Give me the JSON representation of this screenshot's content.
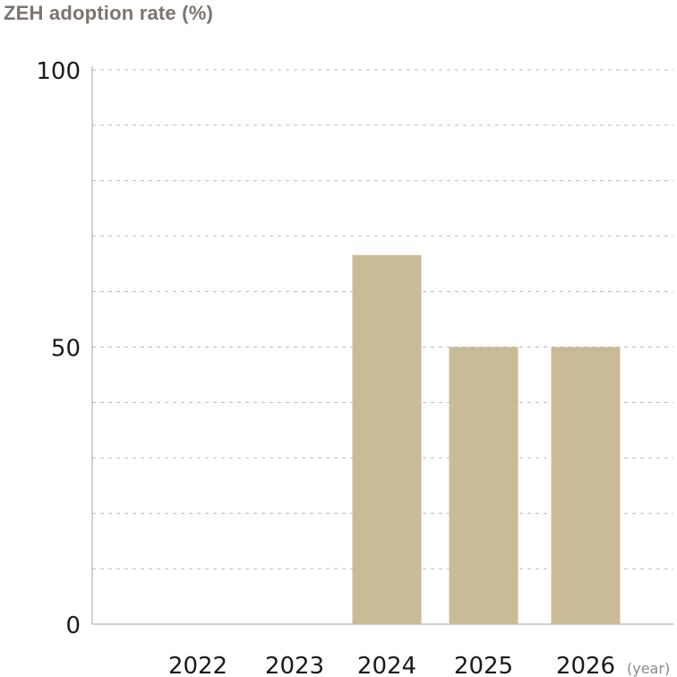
{
  "chart_data": {
    "type": "bar",
    "title": "ZEH adoption rate (%)",
    "xlabel": "",
    "x_unit": "(year)",
    "ylabel": "",
    "categories": [
      "2022",
      "2023",
      "2024",
      "2025",
      "2026"
    ],
    "values": [
      null,
      null,
      66.6,
      50,
      50
    ],
    "ylim": [
      0,
      100
    ],
    "yticks": [
      "0",
      "50",
      "100"
    ],
    "grid": "dashed horizontal every 10",
    "bar_color": "#c9bb96",
    "legend": "none"
  }
}
